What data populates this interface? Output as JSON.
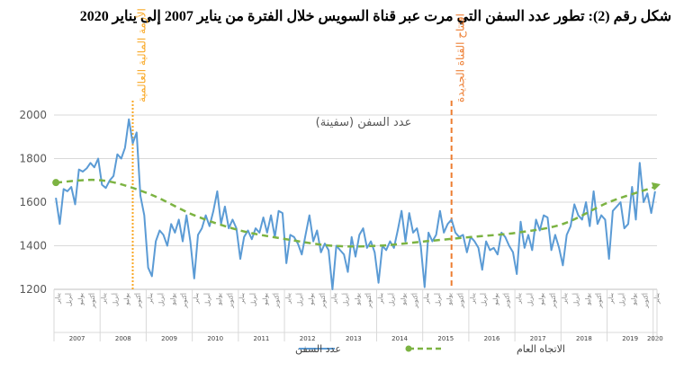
{
  "figure_title": "شكل رقم (2): تطور عدد السفن التي مرت عبر قناة السويس خلال الفترة من يناير 2007 إلى يناير 2020",
  "chart_data": {
    "type": "line",
    "title": "عدد السفن (سفينة)",
    "xlabel": "",
    "ylabel": "",
    "ylim": [
      1200,
      2000
    ],
    "yticks": [
      1200,
      1400,
      1600,
      1800,
      2000
    ],
    "grid": true,
    "legend_position": "bottom",
    "years": [
      "2007",
      "2008",
      "2009",
      "2010",
      "2011",
      "2012",
      "2013",
      "2014",
      "2015",
      "2016",
      "2017",
      "2018",
      "2019",
      "2020"
    ],
    "month_labels": [
      "يناير",
      "أبريل",
      "يوليو",
      "أكتوبر"
    ],
    "last_month_label": "يناير",
    "series": [
      {
        "name": "عدد السفن",
        "color": "#5b9bd5",
        "values": [
          1620,
          1500,
          1660,
          1650,
          1670,
          1590,
          1750,
          1740,
          1755,
          1780,
          1760,
          1800,
          1680,
          1665,
          1700,
          1720,
          1820,
          1800,
          1850,
          1980,
          1870,
          1920,
          1630,
          1540,
          1300,
          1260,
          1420,
          1470,
          1450,
          1400,
          1500,
          1460,
          1520,
          1420,
          1540,
          1420,
          1250,
          1450,
          1480,
          1540,
          1490,
          1560,
          1650,
          1500,
          1580,
          1480,
          1520,
          1480,
          1340,
          1440,
          1470,
          1430,
          1480,
          1460,
          1530,
          1460,
          1540,
          1440,
          1560,
          1550,
          1320,
          1450,
          1440,
          1410,
          1360,
          1450,
          1540,
          1420,
          1470,
          1370,
          1410,
          1380,
          1200,
          1400,
          1380,
          1360,
          1280,
          1440,
          1350,
          1450,
          1480,
          1390,
          1420,
          1370,
          1230,
          1400,
          1380,
          1420,
          1390,
          1470,
          1560,
          1420,
          1550,
          1460,
          1480,
          1400,
          1210,
          1460,
          1420,
          1450,
          1560,
          1460,
          1500,
          1520,
          1460,
          1440,
          1450,
          1370,
          1440,
          1420,
          1390,
          1290,
          1420,
          1380,
          1390,
          1360,
          1460,
          1440,
          1400,
          1370,
          1270,
          1510,
          1390,
          1450,
          1380,
          1520,
          1470,
          1540,
          1530,
          1380,
          1450,
          1390,
          1310,
          1450,
          1490,
          1590,
          1540,
          1520,
          1600,
          1490,
          1650,
          1500,
          1540,
          1520,
          1340,
          1560,
          1580,
          1600,
          1480,
          1500,
          1670,
          1520,
          1780,
          1600,
          1640,
          1550,
          1650
        ]
      },
      {
        "name": "الاتجاه العام",
        "color": "#7cb342",
        "values": [
          1690,
          1700,
          1640,
          1540,
          1470,
          1430,
          1400,
          1400,
          1420,
          1440,
          1460,
          1500,
          1600,
          1670
        ]
      }
    ],
    "annotations": [
      {
        "text": "الأزمة المالية العالمية",
        "color": "#f9a825",
        "x_month": 20
      },
      {
        "text": "افتتاح القناة الجديدة",
        "color": "#ed7d31",
        "x_month": 103
      }
    ]
  }
}
